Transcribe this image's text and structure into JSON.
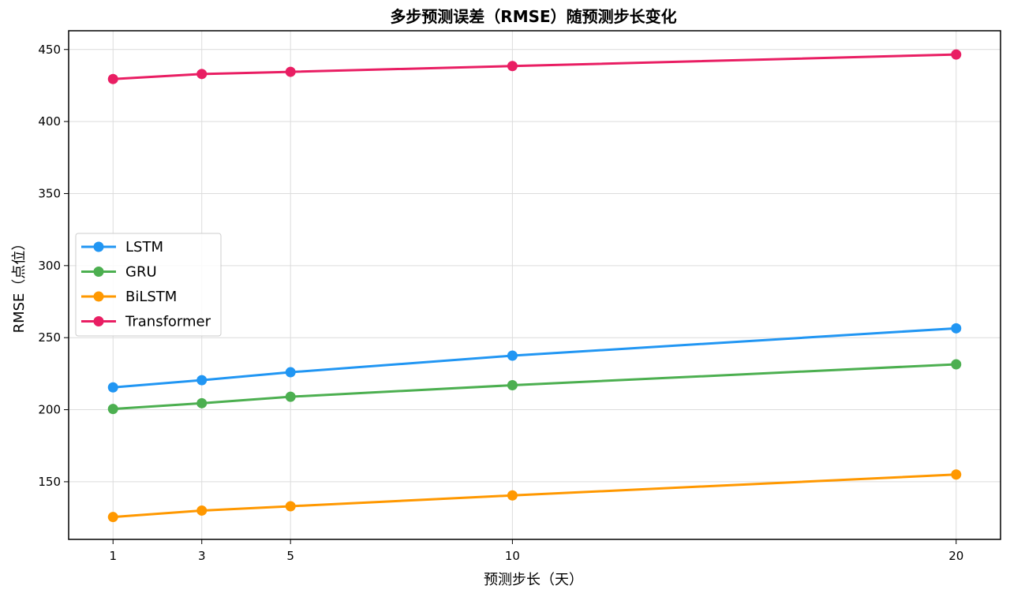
{
  "chart_data": {
    "type": "line",
    "title": "多步预测误差（RMSE）随预测步长变化",
    "xlabel": "预测步长（天）",
    "ylabel": "RMSE（点位）",
    "x": [
      1,
      3,
      5,
      10,
      20
    ],
    "xticks": [
      "1",
      "3",
      "5",
      "10",
      "20"
    ],
    "yticks": [
      "150",
      "200",
      "250",
      "300",
      "350",
      "400",
      "450"
    ],
    "ytick_values": [
      150,
      200,
      250,
      300,
      350,
      400,
      450
    ],
    "xlim": [
      0,
      21
    ],
    "ylim": [
      110,
      463
    ],
    "grid": true,
    "legend_position": "center-left",
    "series": [
      {
        "name": "LSTM",
        "color": "#2196F3",
        "values": [
          215.5,
          220.5,
          226,
          237.5,
          256.5
        ]
      },
      {
        "name": "GRU",
        "color": "#4CAF50",
        "values": [
          200.5,
          204.5,
          209,
          217,
          231.5
        ]
      },
      {
        "name": "BiLSTM",
        "color": "#FF9800",
        "values": [
          125.5,
          130,
          133,
          140.5,
          155
        ]
      },
      {
        "name": "Transformer",
        "color": "#E91E63",
        "values": [
          429.5,
          433,
          434.5,
          438.5,
          446.5
        ]
      }
    ]
  }
}
